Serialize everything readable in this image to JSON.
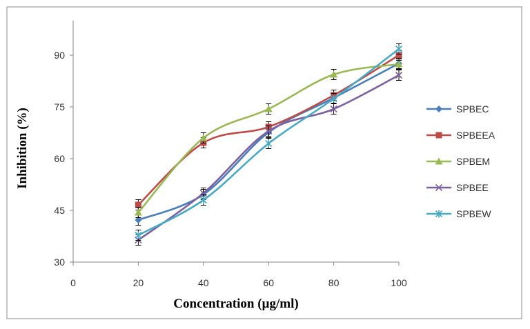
{
  "chart_data": {
    "type": "line",
    "title": "",
    "xlabel": "Concentration  (µg/ml)",
    "ylabel": "Inhibition  (%)",
    "x": [
      20,
      40,
      60,
      80,
      100
    ],
    "xlim": [
      0,
      100
    ],
    "ylim": [
      30,
      100
    ],
    "xticks": [
      0,
      20,
      40,
      60,
      80,
      100
    ],
    "yticks": [
      30,
      45,
      60,
      75,
      90
    ],
    "grid": false,
    "legend_position": "right",
    "smooth": true,
    "error_bar": 1.5,
    "series": [
      {
        "name": "SPBEC",
        "values": [
          42.2,
          49.6,
          67.6,
          77.6,
          87.6
        ],
        "color": "#4A7EBB",
        "marker": "diamond"
      },
      {
        "name": "SPBEEA",
        "values": [
          46.6,
          64.6,
          69.2,
          78.4,
          90.0
        ],
        "color": "#BE4B48",
        "marker": "square"
      },
      {
        "name": "SPBEM",
        "values": [
          44.4,
          66.0,
          74.4,
          84.4,
          87.4
        ],
        "color": "#98B954",
        "marker": "triangle"
      },
      {
        "name": "SPBEE",
        "values": [
          36.4,
          50.0,
          68.0,
          74.4,
          84.2
        ],
        "color": "#7D60A0",
        "marker": "x"
      },
      {
        "name": "SPBEW",
        "values": [
          37.8,
          48.0,
          64.4,
          77.4,
          91.8
        ],
        "color": "#46AAC5",
        "marker": "star"
      }
    ]
  }
}
